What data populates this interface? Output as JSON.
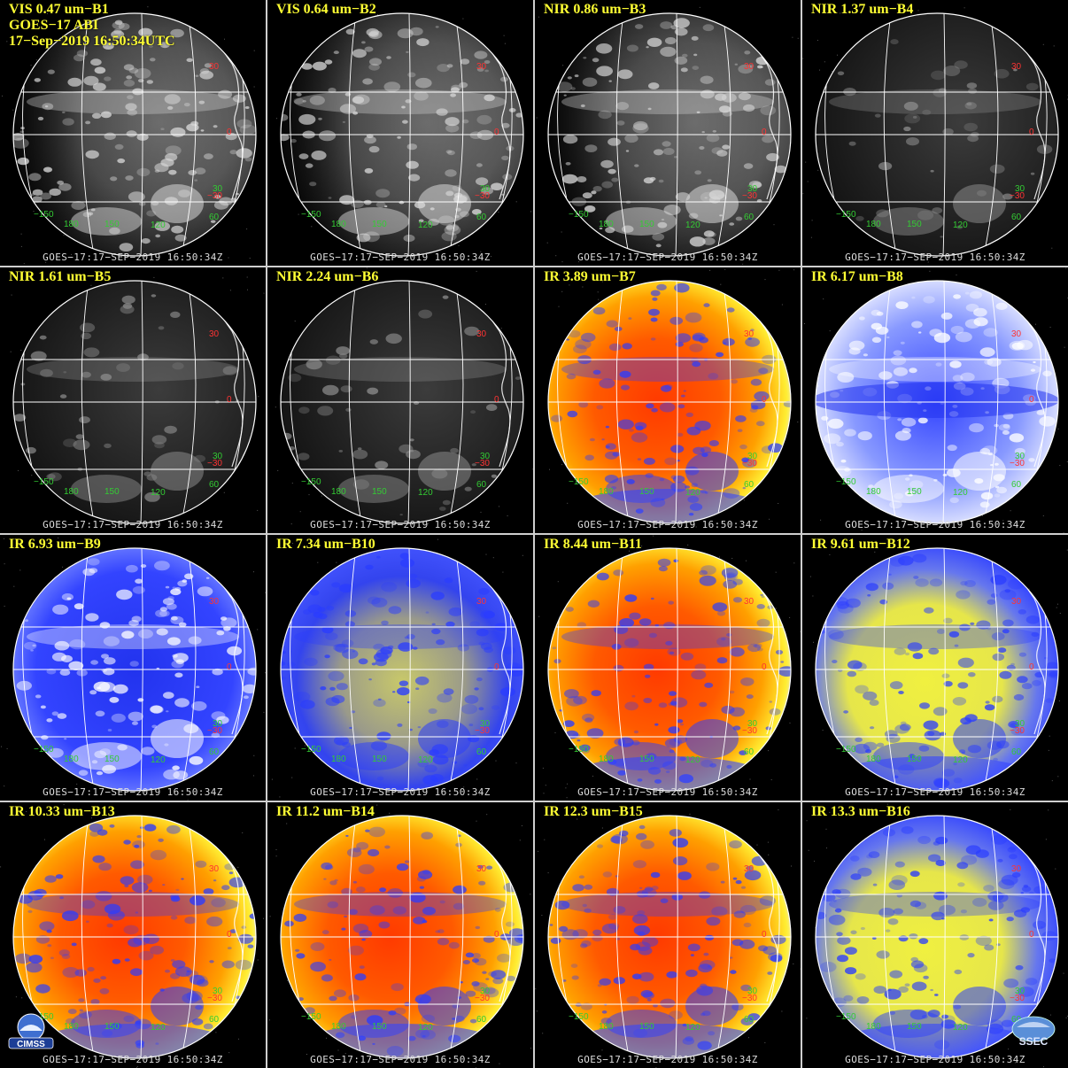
{
  "panels": [
    {
      "title": "VIS 0.47 um−B1",
      "extra": [
        "GOES−17 ABI",
        "17−Sep−2019 16:50:34UTC"
      ],
      "kind": "vis"
    },
    {
      "title": "VIS 0.64 um−B2",
      "kind": "vis"
    },
    {
      "title": "NIR 0.86 um−B3",
      "kind": "vis"
    },
    {
      "title": "NIR 1.37 um−B4",
      "kind": "dark"
    },
    {
      "title": "NIR 1.61 um−B5",
      "kind": "dark"
    },
    {
      "title": "NIR 2.24 um−B6",
      "kind": "dark"
    },
    {
      "title": "IR 3.89 um−B7",
      "kind": "warm"
    },
    {
      "title": "IR 6.17 um−B8",
      "kind": "wv1"
    },
    {
      "title": "IR 6.93 um−B9",
      "kind": "wv2"
    },
    {
      "title": "IR 7.34 um−B10",
      "kind": "wv3"
    },
    {
      "title": "IR 8.44 um−B11",
      "kind": "warm"
    },
    {
      "title": "IR 9.61 um−B12",
      "kind": "ozone"
    },
    {
      "title": "IR 10.33 um−B13",
      "kind": "warm"
    },
    {
      "title": "IR 11.2 um−B14",
      "kind": "warm"
    },
    {
      "title": "IR 12.3 um−B15",
      "kind": "warm"
    },
    {
      "title": "IR 13.3 um−B16",
      "kind": "ozone"
    }
  ],
  "footer": "GOES−17:17−SEP−2019  16:50:34Z",
  "lat_labels": [
    "30",
    "0",
    "−30"
  ],
  "lon_labels": [
    "−150",
    "180",
    "150",
    "120",
    "60"
  ],
  "lat_green_label": "30",
  "logos": {
    "left": "CIMSS",
    "right": "SSEC"
  },
  "colors": {
    "title": "#ffff33",
    "lat_label": "#ff3333",
    "lon_label": "#33cc33",
    "gridline": "#ffffff",
    "panel_border": "#cfcfcf"
  }
}
